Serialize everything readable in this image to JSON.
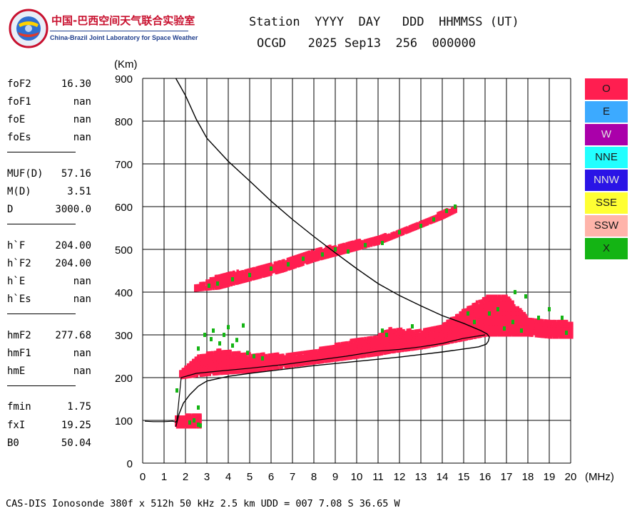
{
  "logo": {
    "title_cn": "中国-巴西空间天气联合实验室",
    "title_en": "China-Brazil Joint Laboratory for Space Weather"
  },
  "header": {
    "line1": "Station  YYYY  DAY   DDD  HHMMSS (UT)",
    "line2": "OCGD   2025 Sep13  256  000000"
  },
  "parameters": [
    {
      "key": "foF2",
      "value": "16.30"
    },
    {
      "key": "foF1",
      "value": "nan"
    },
    {
      "key": "foE",
      "value": "nan"
    },
    {
      "key": "foEs",
      "value": "nan"
    },
    {
      "key": "MUF(D)",
      "value": "57.16"
    },
    {
      "key": "M(D)",
      "value": "3.51"
    },
    {
      "key": "D",
      "value": "3000.0"
    },
    {
      "key": "h`F",
      "value": "204.00"
    },
    {
      "key": "h`F2",
      "value": "204.00"
    },
    {
      "key": "h`E",
      "value": "nan"
    },
    {
      "key": "h`Es",
      "value": "nan"
    },
    {
      "key": "hmF2",
      "value": "277.68"
    },
    {
      "key": "hmF1",
      "value": "nan"
    },
    {
      "key": "hmE",
      "value": "nan"
    },
    {
      "key": "fmin",
      "value": "1.75"
    },
    {
      "key": "fxI",
      "value": "19.25"
    },
    {
      "key": "B0",
      "value": "50.04"
    }
  ],
  "legend": [
    {
      "label": "O",
      "color": "#ff1e50"
    },
    {
      "label": "E",
      "color": "#3caaff"
    },
    {
      "label": "W",
      "color": "#aa00aa"
    },
    {
      "label": "NNE",
      "color": "#22ffff"
    },
    {
      "label": "NNW",
      "color": "#2a14e6"
    },
    {
      "label": "SSE",
      "color": "#ffff33"
    },
    {
      "label": "SSW",
      "color": "#ffb4aa"
    },
    {
      "label": "X",
      "color": "#14b414"
    }
  ],
  "footer": "CAS-DIS Ionosonde 380f x 512h 50 kHz 2.5 km UDD = 007 7.08 S 36.65 W",
  "chart_data": {
    "type": "scatter",
    "xlabel": "(MHz)",
    "ylabel": "(Km)",
    "xlim": [
      0,
      20
    ],
    "ylim": [
      0,
      900
    ],
    "xticks": [
      0,
      1,
      2,
      3,
      4,
      5,
      6,
      7,
      8,
      9,
      10,
      11,
      12,
      13,
      14,
      15,
      16,
      17,
      18,
      19,
      20
    ],
    "yticks": [
      0,
      100,
      200,
      300,
      400,
      500,
      600,
      700,
      800,
      900
    ],
    "grid": true,
    "legend_position": "right",
    "series": [
      {
        "name": "O",
        "color": "#ff1e50",
        "bands": [
          {
            "x": [
              1.5,
              2.7
            ],
            "y_low": [
              85,
              85
            ],
            "y_high": [
              110,
              115
            ]
          },
          {
            "x": [
              1.7,
              2.5,
              3.5,
              5,
              6.5,
              8,
              9.5,
              11,
              11.5,
              13,
              14,
              15,
              16,
              17,
              18,
              19,
              20
            ],
            "y_low": [
              200,
              205,
              210,
              215,
              225,
              235,
              245,
              255,
              260,
              270,
              280,
              290,
              300,
              300,
              300,
              295,
              295
            ],
            "y_high": [
              215,
              250,
              265,
              255,
              255,
              265,
              285,
              300,
              315,
              310,
              325,
              360,
              390,
              390,
              340,
              335,
              330
            ]
          },
          {
            "x": [
              2.4,
              3.5,
              5,
              6.5,
              8,
              9.5,
              11,
              12,
              13,
              14,
              14.6
            ],
            "y_low": [
              405,
              410,
              430,
              450,
              475,
              495,
              515,
              535,
              555,
              575,
              590
            ],
            "y_high": [
              415,
              440,
              455,
              475,
              500,
              515,
              530,
              545,
              565,
              590,
              600
            ]
          }
        ]
      },
      {
        "name": "X",
        "color": "#14b414",
        "points": [
          [
            1.6,
            170
          ],
          [
            2.2,
            95
          ],
          [
            2.4,
            100
          ],
          [
            2.6,
            90
          ],
          [
            2.6,
            130
          ],
          [
            2.7,
            88
          ],
          [
            2.6,
            268
          ],
          [
            2.9,
            300
          ],
          [
            3.2,
            290
          ],
          [
            3.3,
            310
          ],
          [
            3.6,
            280
          ],
          [
            3.8,
            300
          ],
          [
            4.0,
            318
          ],
          [
            4.2,
            275
          ],
          [
            4.4,
            288
          ],
          [
            4.7,
            322
          ],
          [
            4.9,
            258
          ],
          [
            5.2,
            250
          ],
          [
            5.6,
            245
          ],
          [
            3.1,
            415
          ],
          [
            3.5,
            420
          ],
          [
            4.2,
            430
          ],
          [
            5.0,
            440
          ],
          [
            6.0,
            455
          ],
          [
            6.8,
            465
          ],
          [
            7.5,
            478
          ],
          [
            8.4,
            488
          ],
          [
            9.0,
            500
          ],
          [
            9.6,
            495
          ],
          [
            10.4,
            510
          ],
          [
            11.2,
            515
          ],
          [
            12.0,
            540
          ],
          [
            13.0,
            555
          ],
          [
            13.6,
            570
          ],
          [
            14.2,
            590
          ],
          [
            14.6,
            600
          ],
          [
            11.2,
            310
          ],
          [
            11.4,
            300
          ],
          [
            12.6,
            320
          ],
          [
            15.2,
            350
          ],
          [
            15.5,
            330
          ],
          [
            16.2,
            350
          ],
          [
            16.6,
            360
          ],
          [
            17.3,
            330
          ],
          [
            17.4,
            400
          ],
          [
            17.9,
            390
          ],
          [
            18.5,
            340
          ],
          [
            19.0,
            360
          ],
          [
            19.6,
            340
          ],
          [
            19.8,
            305
          ],
          [
            17.7,
            310
          ],
          [
            16.9,
            315
          ]
        ]
      },
      {
        "name": "virtual-height trace",
        "color": "#000000",
        "line": [
          [
            1.55,
            85
          ],
          [
            1.6,
            95
          ],
          [
            1.7,
            115
          ],
          [
            1.9,
            140
          ],
          [
            2.2,
            160
          ],
          [
            2.6,
            180
          ],
          [
            3.0,
            192
          ],
          [
            4.0,
            203
          ],
          [
            5.0,
            210
          ],
          [
            6.0,
            216
          ],
          [
            7.0,
            222
          ],
          [
            8.0,
            228
          ],
          [
            9.0,
            233
          ],
          [
            10.0,
            238
          ],
          [
            11.0,
            243
          ],
          [
            12.0,
            248
          ],
          [
            13.0,
            254
          ],
          [
            14.0,
            260
          ],
          [
            15.0,
            267
          ],
          [
            15.7,
            272
          ],
          [
            16.05,
            278
          ],
          [
            16.15,
            285
          ],
          [
            16.2,
            295
          ],
          [
            16.1,
            302
          ],
          [
            15.8,
            310
          ],
          [
            15.0,
            327
          ],
          [
            14.0,
            345
          ],
          [
            13.0,
            368
          ],
          [
            12.0,
            392
          ],
          [
            11.0,
            420
          ],
          [
            10.0,
            455
          ],
          [
            9.0,
            492
          ],
          [
            8.0,
            530
          ],
          [
            7.0,
            570
          ],
          [
            6.0,
            613
          ],
          [
            5.0,
            660
          ],
          [
            4.0,
            706
          ],
          [
            3.0,
            760
          ],
          [
            2.5,
            805
          ],
          [
            2.0,
            860
          ],
          [
            1.55,
            900
          ]
        ]
      },
      {
        "name": "fitted profile",
        "color": "#000000",
        "line": [
          [
            0.1,
            98
          ],
          [
            0.5,
            97
          ],
          [
            1.0,
            97
          ],
          [
            1.4,
            98
          ],
          [
            1.55,
            96
          ],
          [
            1.6,
            100
          ],
          [
            1.8,
            200
          ],
          [
            2.5,
            210
          ],
          [
            3.5,
            215
          ],
          [
            5.0,
            222
          ],
          [
            6.5,
            230
          ],
          [
            8.0,
            240
          ],
          [
            9.5,
            250
          ],
          [
            11.0,
            262
          ],
          [
            12.0,
            266
          ],
          [
            13.0,
            272
          ],
          [
            14.0,
            280
          ],
          [
            15.0,
            292
          ],
          [
            16.0,
            300
          ]
        ]
      }
    ]
  }
}
